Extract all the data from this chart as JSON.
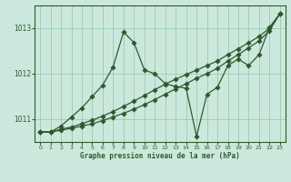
{
  "title": "Graphe pression niveau de la mer (hPa)",
  "bg_color": "#cce8dc",
  "grid_color": "#99ccb3",
  "line_color": "#2d5a2d",
  "x_ticks": [
    0,
    1,
    2,
    3,
    4,
    5,
    6,
    7,
    8,
    9,
    10,
    11,
    12,
    13,
    14,
    15,
    16,
    17,
    18,
    19,
    20,
    21,
    22,
    23
  ],
  "y_ticks": [
    1011,
    1012,
    1013
  ],
  "ylim": [
    1010.5,
    1013.5
  ],
  "xlim": [
    -0.5,
    23.5
  ],
  "wiggly_line": [
    1010.72,
    1010.72,
    1010.85,
    1011.05,
    1011.25,
    1011.5,
    1011.75,
    1012.15,
    1012.92,
    1012.68,
    1012.08,
    1012.0,
    1011.78,
    1011.72,
    1011.68,
    1010.62,
    1011.55,
    1011.7,
    1012.18,
    1012.32,
    1012.18,
    1012.42,
    1013.02,
    1013.32
  ],
  "trend_line1": [
    1010.72,
    1010.72,
    1010.78,
    1010.83,
    1010.9,
    1010.98,
    1011.07,
    1011.17,
    1011.28,
    1011.4,
    1011.52,
    1011.65,
    1011.77,
    1011.88,
    1011.98,
    1012.08,
    1012.18,
    1012.28,
    1012.42,
    1012.55,
    1012.68,
    1012.82,
    1013.0,
    1013.32
  ],
  "trend_line2": [
    1010.72,
    1010.72,
    1010.76,
    1010.8,
    1010.85,
    1010.9,
    1010.97,
    1011.05,
    1011.13,
    1011.22,
    1011.32,
    1011.43,
    1011.55,
    1011.67,
    1011.78,
    1011.9,
    1012.0,
    1012.12,
    1012.28,
    1012.42,
    1012.57,
    1012.72,
    1012.95,
    1013.32
  ]
}
